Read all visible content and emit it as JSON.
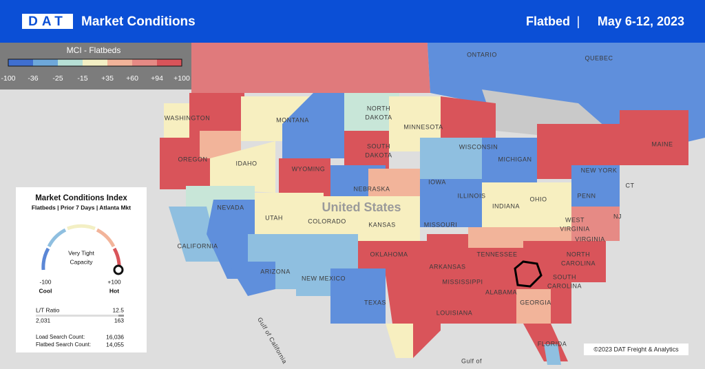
{
  "header": {
    "logo": "DAT",
    "title": "Market Conditions",
    "equipment": "Flatbed",
    "separator": "|",
    "date_range": "May 6-12, 2023"
  },
  "legend": {
    "title": "MCI - Flatbeds",
    "ticks": [
      "-100",
      "-36",
      "-25",
      "-15",
      "+35",
      "+60",
      "+94",
      "+100"
    ]
  },
  "index_card": {
    "title": "Market Conditions Index",
    "subtitle": "Flatbeds | Prior 7 Days | Atlanta Mkt",
    "status_lines": [
      "Very Tight",
      "Capacity"
    ],
    "min": "-100",
    "min_label": "Cool",
    "max": "+100",
    "max_label": "Hot",
    "ratio_label": "L/T Ratio",
    "ratio": "12.5",
    "loads": "2,031",
    "trucks": "163",
    "load_search_label": "Load Search Count:",
    "load_search": "16,036",
    "flatbed_search_label": "Flatbed Search Count:",
    "flatbed_search": "14,055"
  },
  "map_labels": [
    "ONTARIO",
    "QUEBEC",
    "WASHINGTON",
    "MONTANA",
    "NORTH",
    "DAKOTA",
    "SOUTH",
    "DAKOTA",
    "MINNESOTA",
    "WISCONSIN",
    "MICHIGAN",
    "MAINE",
    "NEW YORK",
    "OREGON",
    "IDAHO",
    "WYOMING",
    "NEBRASKA",
    "IOWA",
    "ILLINOIS",
    "INDIANA",
    "OHIO",
    "PENN",
    "NJ",
    "CT",
    "NEVADA",
    "UTAH",
    "COLORADO",
    "United States",
    "KANSAS",
    "MISSOURI",
    "WEST",
    "VIRGINIA",
    "VIRGINIA",
    "CALIFORNIA",
    "ARIZONA",
    "NEW MEXICO",
    "OKLAHOMA",
    "ARKANSAS",
    "TENNESSEE",
    "NORTH",
    "CAROLINA",
    "SOUTH",
    "CAROLINA",
    "MISSISSIPPI",
    "ALABAMA",
    "GEORGIA",
    "TEXAS",
    "LOUISIANA",
    "FLORIDA",
    "Gulf of California",
    "Gulf of"
  ],
  "copyright": "©2023 DAT Freight & Analytics"
}
